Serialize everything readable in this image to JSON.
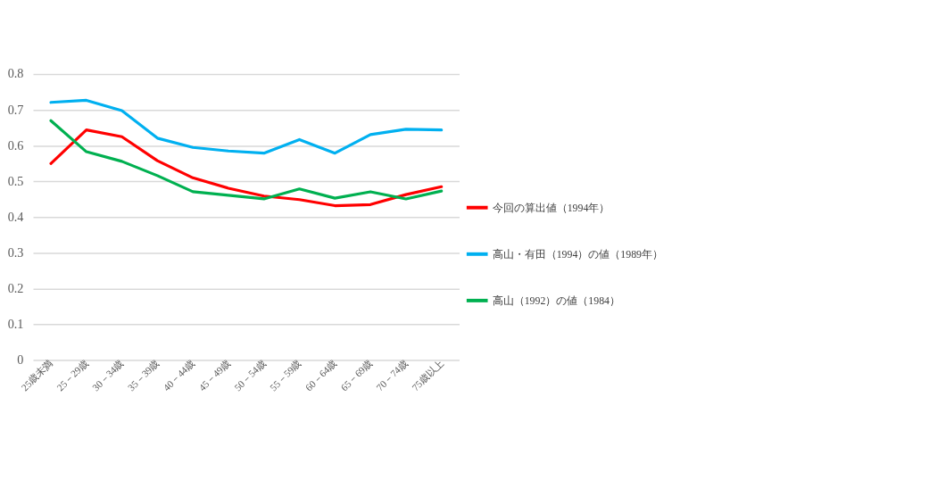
{
  "chart_data": {
    "type": "line",
    "categories": [
      "25歳未満",
      "25－29歳",
      "30－34歳",
      "35－39歳",
      "40－44歳",
      "45－49歳",
      "50－54歳",
      "55－59歳",
      "60－64歳",
      "65－69歳",
      "70－74歳",
      "75歳以上"
    ],
    "series": [
      {
        "name": "今回の算出値（1994年）",
        "color": "#ff0000",
        "values": [
          0.55,
          0.644,
          0.625,
          0.558,
          0.51,
          0.481,
          0.459,
          0.449,
          0.432,
          0.435,
          0.463,
          0.485
        ]
      },
      {
        "name": "高山・有田（1994）の値（1989年）",
        "color": "#00b0f0",
        "values": [
          0.721,
          0.727,
          0.698,
          0.621,
          0.595,
          0.585,
          0.579,
          0.617,
          0.579,
          0.631,
          0.646,
          0.644
        ]
      },
      {
        "name": "高山（1992）の値（1984）",
        "color": "#00b050",
        "values": [
          0.67,
          0.583,
          0.556,
          0.516,
          0.471,
          0.461,
          0.451,
          0.479,
          0.453,
          0.471,
          0.451,
          0.473
        ]
      }
    ],
    "ylim": [
      0,
      0.8
    ],
    "yticks": [
      0,
      0.1,
      0.2,
      0.3,
      0.4,
      0.5,
      0.6,
      0.7,
      0.8
    ],
    "grid": "y",
    "legend": "right",
    "marker": "none",
    "line_style": "solid"
  }
}
